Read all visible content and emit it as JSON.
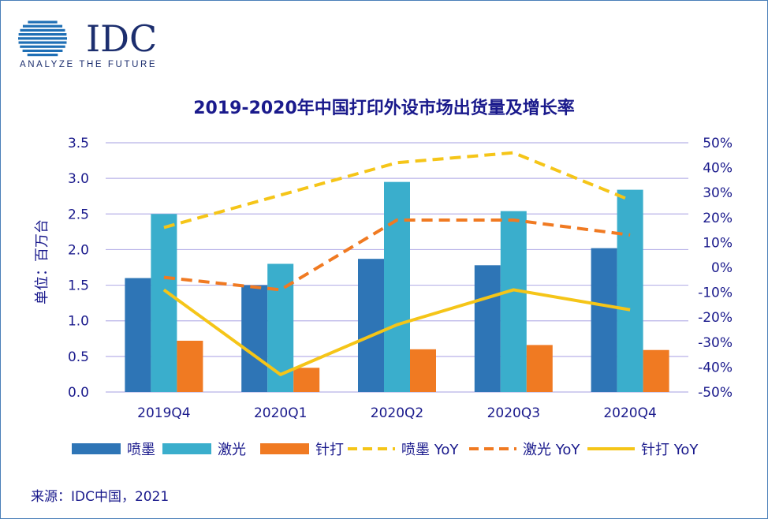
{
  "logo": {
    "name": "IDC",
    "tagline": "ANALYZE THE FUTURE"
  },
  "source": "来源：IDC中国，2021",
  "colors": {
    "inkjet": "#2e75b6",
    "laser": "#3aaecc",
    "dotmatrix": "#f07a22",
    "inkjet_yoy": "#f5c518",
    "laser_yoy": "#f07a22",
    "dotmatrix_yoy": "#f5c518",
    "title": "#1a1a8c",
    "axis_text": "#1a1a8c",
    "grid": "#b8b2e8"
  },
  "chart_data": {
    "type": "bar",
    "title": "2019-2020年中国打印外设市场出货量及增长率",
    "ylabel": "单位：百万台",
    "categories": [
      "2019Q4",
      "2020Q1",
      "2020Q2",
      "2020Q3",
      "2020Q4"
    ],
    "ylim": [
      0,
      3.5
    ],
    "yticks": [
      "0.0",
      "0.5",
      "1.0",
      "1.5",
      "2.0",
      "2.5",
      "3.0",
      "3.5"
    ],
    "y2lim": [
      -50,
      50
    ],
    "y2ticks": [
      "-50%",
      "-40%",
      "-30%",
      "-20%",
      "-10%",
      "0%",
      "10%",
      "20%",
      "30%",
      "40%",
      "50%"
    ],
    "grid": true,
    "legend_position": "bottom",
    "bar_series": [
      {
        "name": "喷墨",
        "values": [
          1.6,
          1.5,
          1.87,
          1.78,
          2.02
        ]
      },
      {
        "name": "激光",
        "values": [
          2.5,
          1.8,
          2.95,
          2.54,
          2.84
        ]
      },
      {
        "name": "针打",
        "values": [
          0.72,
          0.34,
          0.6,
          0.66,
          0.59
        ]
      }
    ],
    "line_series": [
      {
        "name": "喷墨 YoY",
        "style": "dashed",
        "values": [
          16,
          29,
          42,
          46,
          27
        ]
      },
      {
        "name": "激光 YoY",
        "style": "dashed",
        "values": [
          -4,
          -9,
          19,
          19,
          13
        ]
      },
      {
        "name": "针打 YoY",
        "style": "solid",
        "values": [
          -9,
          -43,
          -23,
          -9,
          -17
        ]
      }
    ]
  }
}
